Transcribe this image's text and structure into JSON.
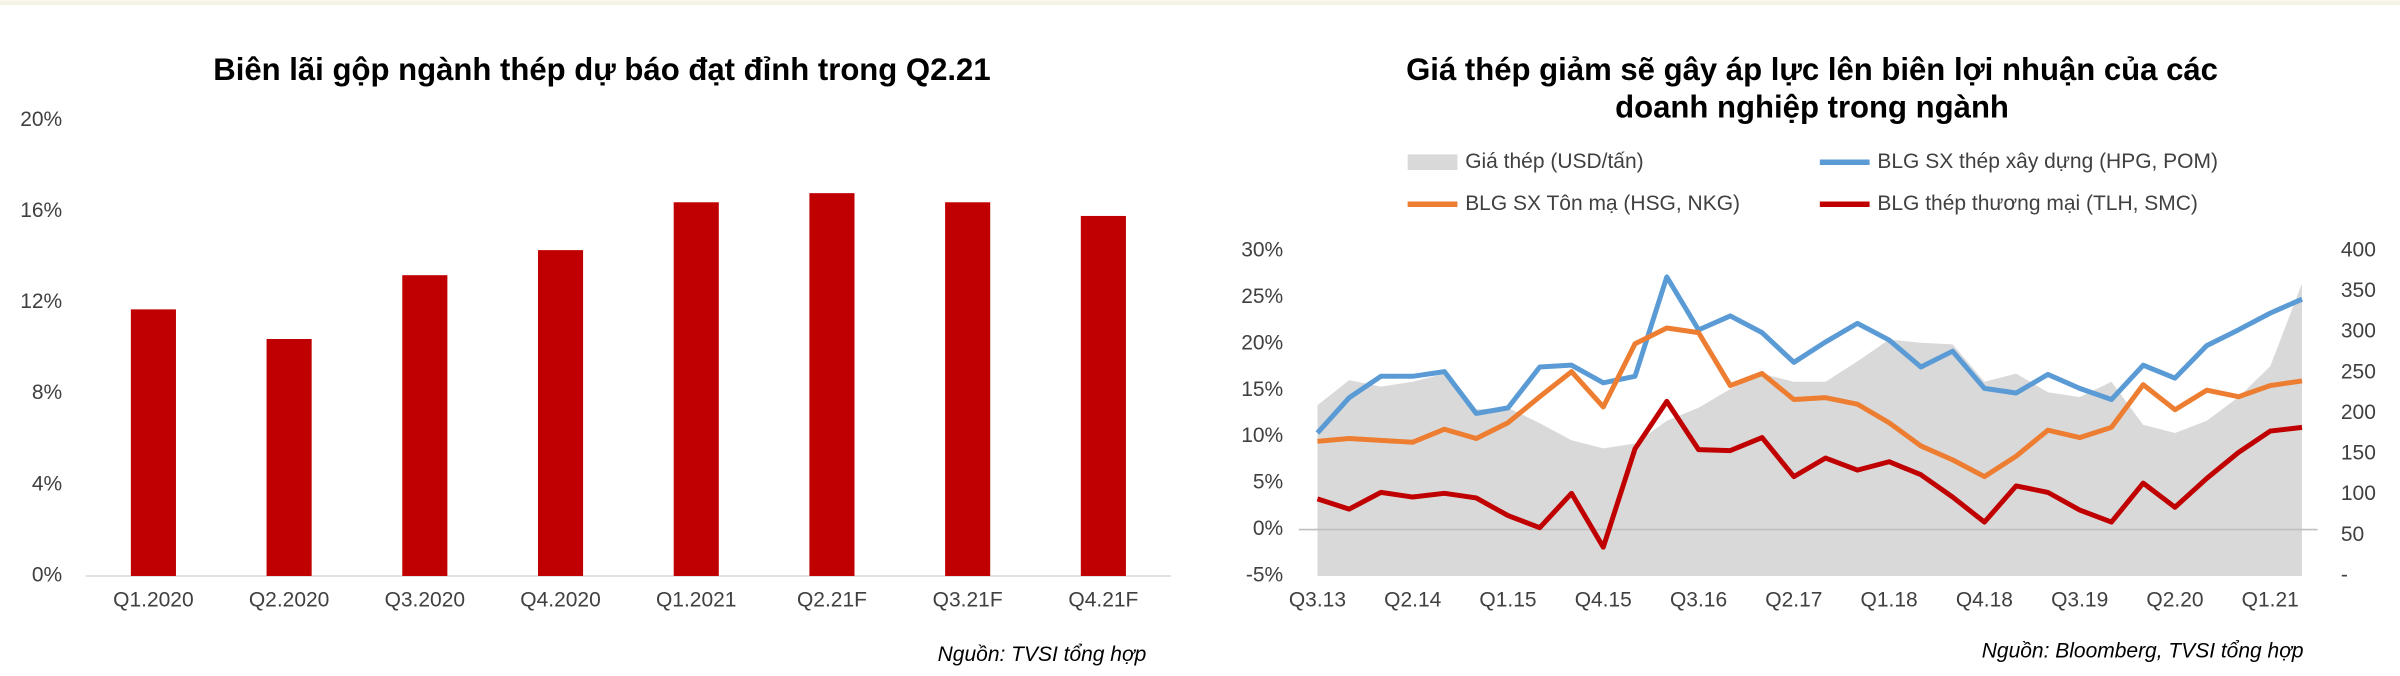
{
  "chart_data": [
    {
      "type": "bar",
      "title": "Biên lãi gộp ngành thép dự báo đạt đỉnh trong Q2.21",
      "categories": [
        "Q1.2020",
        "Q2.2020",
        "Q3.2020",
        "Q4.2020",
        "Q1.2021",
        "Q2.21F",
        "Q3.21F",
        "Q4.21F"
      ],
      "values": [
        11.7,
        10.4,
        13.2,
        14.3,
        16.4,
        16.8,
        16.4,
        15.8
      ],
      "color": "#c00000",
      "ylim": [
        0,
        20
      ],
      "yticks": [
        {
          "value": 0,
          "label": "0%"
        },
        {
          "value": 4,
          "label": "4%"
        },
        {
          "value": 8,
          "label": "8%"
        },
        {
          "value": 12,
          "label": "12%"
        },
        {
          "value": 16,
          "label": "16%"
        },
        {
          "value": 20,
          "label": "20%"
        }
      ],
      "source": "Nguồn: TVSI tổng hợp"
    },
    {
      "type": "line",
      "title": [
        "Giá thép giảm sẽ gây áp lực lên biên lợi nhuận của các",
        "doanh nghiệp trong ngành"
      ],
      "categories": [
        "Q3.13",
        null,
        null,
        "Q2.14",
        null,
        null,
        "Q1.15",
        null,
        null,
        "Q4.15",
        null,
        null,
        "Q3.16",
        null,
        null,
        "Q2.17",
        null,
        null,
        "Q1.18",
        null,
        null,
        "Q4.18",
        null,
        null,
        "Q3.19",
        null,
        null,
        "Q2.20",
        null,
        null,
        "Q1.21",
        null
      ],
      "series": [
        {
          "name": "Giá thép (USD/tấn)",
          "type": "area",
          "axis": "y2",
          "color": "#d9d9d9",
          "values": [
            210,
            241,
            233,
            239,
            249,
            205,
            207,
            188,
            167,
            157,
            163,
            191,
            207,
            230,
            249,
            239,
            239,
            264,
            291,
            287,
            285,
            239,
            249,
            226,
            220,
            239,
            186,
            176,
            191,
            220,
            258,
            360
          ]
        },
        {
          "name": "BLG SX thép xây dựng (HPG, POM)",
          "color": "#5b9bd5",
          "values": [
            10.4,
            14.2,
            16.5,
            16.5,
            17,
            12.5,
            13.1,
            17.5,
            17.7,
            15.8,
            16.5,
            27.2,
            21.5,
            23,
            21.2,
            18,
            20.2,
            22.2,
            20.4,
            17.5,
            19.2,
            15.2,
            14.7,
            16.7,
            15.2,
            14,
            17.7,
            16.3,
            19.8,
            21.5,
            23.3,
            24.8
          ]
        },
        {
          "name": "BLG SX Tôn mạ (HSG, NKG)",
          "color": "#ed7d31",
          "values": [
            9.5,
            9.8,
            9.6,
            9.4,
            10.8,
            9.8,
            11.5,
            14.3,
            17,
            13.2,
            20,
            21.7,
            21.2,
            15.5,
            16.8,
            14,
            14.2,
            13.5,
            11.5,
            9,
            7.5,
            5.7,
            7.9,
            10.7,
            9.9,
            11,
            15.6,
            12.9,
            15,
            14.3,
            15.5,
            16
          ]
        },
        {
          "name": "BLG thép thương mại (TLH, SMC)",
          "color": "#c00000",
          "values": [
            3.3,
            2.2,
            4,
            3.5,
            3.9,
            3.4,
            1.5,
            0.2,
            3.9,
            -1.9,
            8.7,
            13.8,
            8.6,
            8.5,
            9.9,
            5.7,
            7.7,
            6.4,
            7.3,
            5.9,
            3.5,
            0.8,
            4.7,
            4,
            2.1,
            0.8,
            5,
            2.4,
            5.5,
            8.3,
            10.6,
            11
          ]
        }
      ],
      "ylim": [
        -5,
        30
      ],
      "yticks": [
        {
          "value": -5,
          "label": "-5%"
        },
        {
          "value": 0,
          "label": "0%"
        },
        {
          "value": 5,
          "label": "5%"
        },
        {
          "value": 10,
          "label": "10%"
        },
        {
          "value": 15,
          "label": "15%"
        },
        {
          "value": 20,
          "label": "20%"
        },
        {
          "value": 25,
          "label": "25%"
        },
        {
          "value": 30,
          "label": "30%"
        }
      ],
      "y2lim": [
        0,
        400
      ],
      "y2ticks": [
        {
          "value": 0,
          "label": "-"
        },
        50,
        100,
        150,
        200,
        250,
        300,
        350,
        400
      ],
      "source": "Nguồn: Bloomberg, TVSI tổng hợp"
    }
  ]
}
